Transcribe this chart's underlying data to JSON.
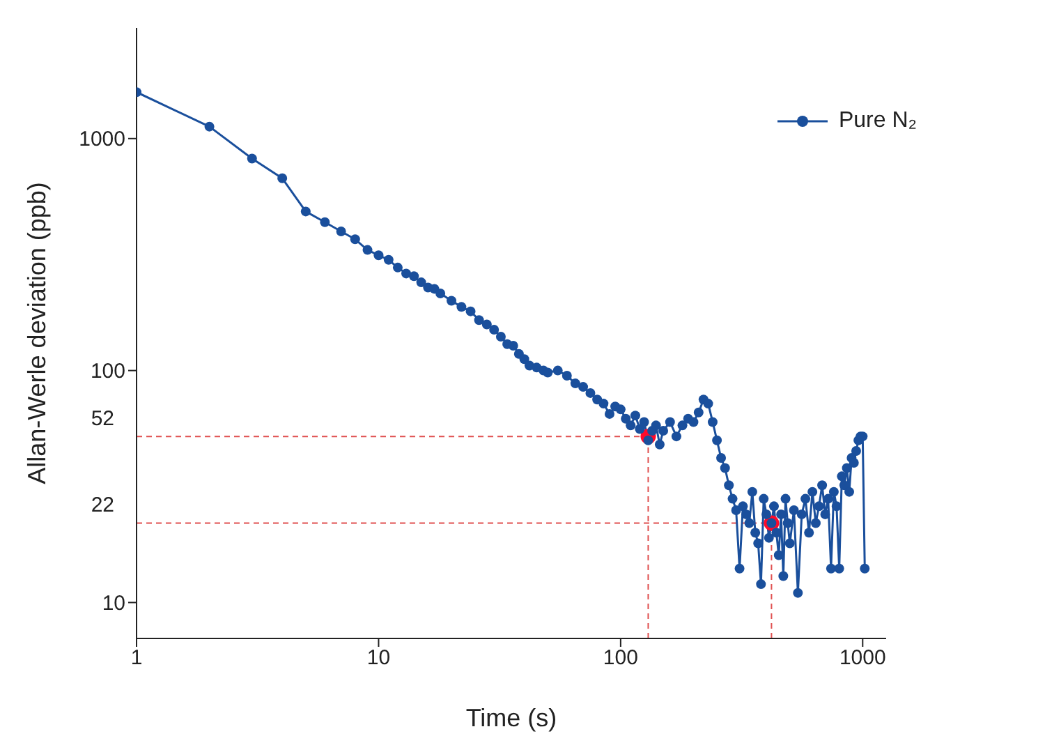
{
  "chart_data": {
    "type": "line",
    "xlabel": "Time (s)",
    "ylabel": "Allan-Werle deviation (ppb)",
    "log": "xy",
    "xlim": [
      1,
      1250
    ],
    "xticks": [
      1,
      10,
      100,
      1000
    ],
    "ylim": [
      7,
      3000
    ],
    "yticks": [
      10,
      100,
      1000
    ],
    "legend": "top right",
    "marker": "circle",
    "line_style": "solid",
    "series": [
      {
        "name": "Pure N₂",
        "color": "#1a4f9c",
        "x": [
          1,
          2,
          3,
          4,
          5,
          6,
          7,
          8,
          9,
          10,
          11,
          12,
          13,
          14,
          15,
          16,
          17,
          18,
          20,
          22,
          24,
          26,
          28,
          30,
          32,
          34,
          36,
          38,
          40,
          42,
          45,
          48,
          50,
          55,
          60,
          65,
          70,
          75,
          80,
          85,
          90,
          95,
          100,
          105,
          110,
          115,
          120,
          125,
          130,
          135,
          140,
          145,
          150,
          160,
          170,
          180,
          190,
          200,
          210,
          220,
          230,
          240,
          250,
          260,
          270,
          280,
          290,
          300,
          310,
          320,
          330,
          340,
          350,
          360,
          370,
          380,
          390,
          400,
          410,
          420,
          430,
          440,
          450,
          460,
          470,
          480,
          490,
          500,
          520,
          540,
          560,
          580,
          600,
          620,
          640,
          660,
          680,
          700,
          720,
          740,
          760,
          780,
          800,
          820,
          840,
          860,
          880,
          900,
          920,
          940,
          960,
          980,
          1000,
          1020
        ],
        "values": [
          1585,
          1126,
          820,
          674,
          485,
          436,
          398,
          368,
          331,
          314,
          300,
          278,
          262,
          255,
          240,
          228,
          225,
          215,
          200,
          188,
          180,
          165,
          158,
          150,
          140,
          130,
          128,
          118,
          112,
          105,
          103,
          100,
          98,
          100,
          95,
          88,
          85,
          80,
          75,
          72,
          65,
          70,
          68,
          62,
          58,
          64,
          56,
          60,
          50,
          55,
          58,
          48,
          55,
          60,
          52,
          58,
          62,
          60,
          66,
          75,
          72,
          60,
          50,
          42,
          38,
          32,
          28,
          25,
          14,
          26,
          24,
          22,
          30,
          20,
          18,
          12,
          28,
          24,
          19,
          22,
          26,
          20,
          16,
          24,
          13,
          28,
          22,
          18,
          25,
          11,
          24,
          28,
          20,
          30,
          22,
          26,
          32,
          24,
          28,
          14,
          30,
          26,
          14,
          35,
          32,
          38,
          30,
          42,
          40,
          45,
          50,
          52,
          52,
          14
        ]
      },
      {
        "type": "scatter",
        "color": "#ff0a2a",
        "x": [
          130,
          420
        ],
        "values": [
          52,
          22
        ]
      }
    ],
    "ref_lines": [
      {
        "axis": "y",
        "value": 52,
        "label": "52",
        "color": "#e05050",
        "line_style": "dashed"
      },
      {
        "axis": "y",
        "value": 22,
        "label": "22",
        "color": "#e05050",
        "line_style": "dashed"
      },
      {
        "axis": "x",
        "value": 130,
        "color": "#e05050",
        "line_style": "dashed"
      },
      {
        "axis": "x",
        "value": 420,
        "color": "#e05050",
        "line_style": "dashed"
      }
    ]
  }
}
